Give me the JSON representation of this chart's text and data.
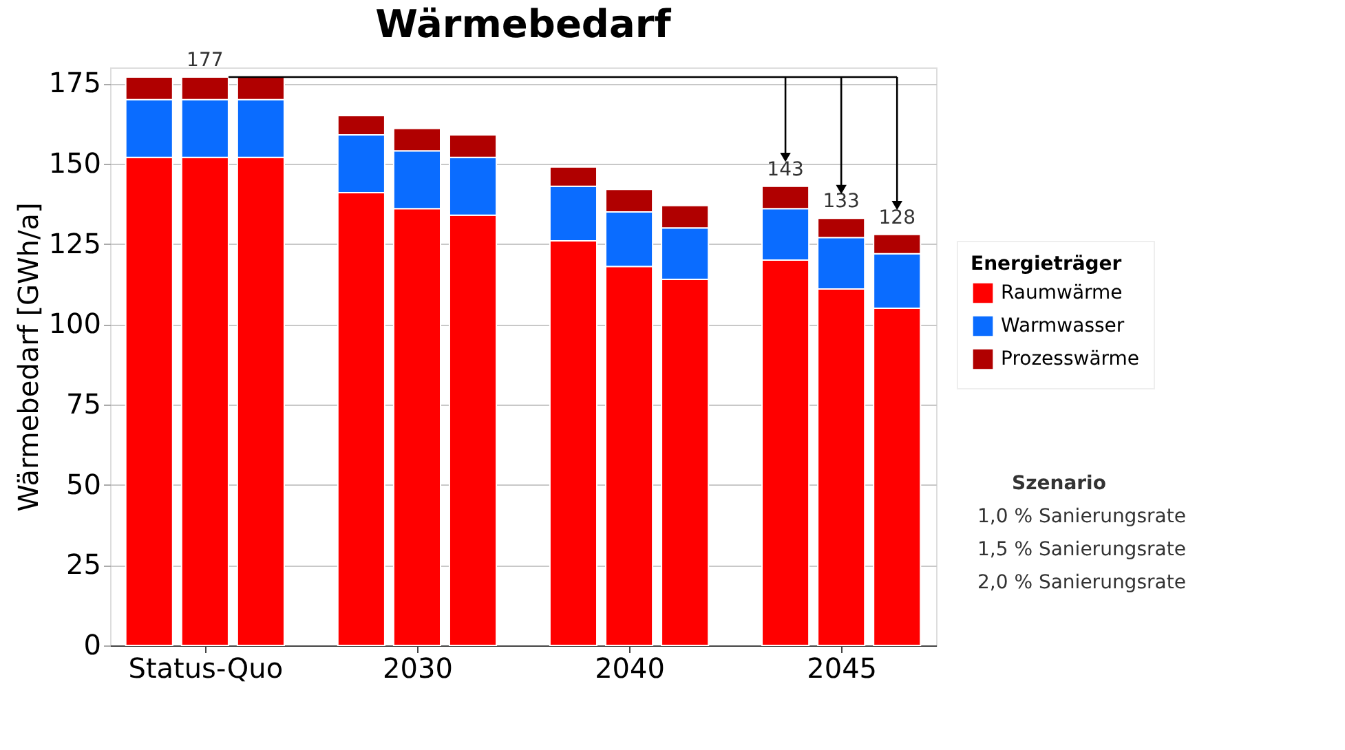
{
  "chart_data": {
    "type": "bar",
    "title": "Wärmebedarf",
    "ylabel": "Wärmebedarf [GWh/a]",
    "legend_title": "Energieträger",
    "legend": "right",
    "categories": [
      null,
      "Status-Quo",
      null,
      null,
      "2030",
      null,
      null,
      "2040",
      null,
      null,
      "2045",
      null
    ],
    "stacked": true,
    "ylim": [
      0,
      180
    ],
    "yticks": [
      0,
      25,
      50,
      75,
      100,
      125,
      150,
      175
    ],
    "grid": "y",
    "series": [
      {
        "name": "Raumwärme",
        "color": "#ff0000",
        "values": [
          152,
          152,
          152,
          141,
          136,
          134,
          126,
          118,
          114,
          120,
          111,
          105
        ]
      },
      {
        "name": "Warmwasser",
        "color": "#0a6cff",
        "values": [
          18,
          18,
          18,
          18,
          18,
          18,
          17,
          17,
          16,
          16,
          16,
          17
        ]
      },
      {
        "name": "Prozesswärme",
        "color": "#b00000",
        "values": [
          7,
          7,
          7,
          6,
          7,
          7,
          6,
          7,
          7,
          7,
          6,
          6
        ]
      }
    ],
    "ref_lines": [
      {
        "axis": "y",
        "value": 177,
        "color": "#000000"
      }
    ],
    "totals": [
      null,
      "177",
      null,
      null,
      null,
      null,
      null,
      null,
      null,
      "143",
      "133",
      "128"
    ],
    "annotations": [
      "Szenario",
      "1,0 % Sanierungsrate",
      "1,5 % Sanierungsrate",
      "2,0 % Sanierungsrate"
    ]
  }
}
